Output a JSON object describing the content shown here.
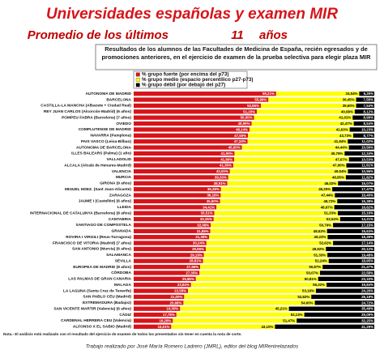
{
  "chart_data": {
    "type": "stacked-bar",
    "title": "Universidades españolas y examen MIR",
    "subtitle": "Promedio de los últimos",
    "subtitle_number": "11",
    "subtitle_unit": "años",
    "description": "Resultados de los alumnos de las Facultades de Medicina de España, recién egresados y de promociones anteriores, en el ejercicio de examen de la prueba selectiva para elegir plaza MIR",
    "note": "Nota.- El análisis está realizado con el resultado del ejercicio de examen de todos los presentados sin tener en cuenta la nota de corte.",
    "footer": "Trabajo realizado por José María Romero Ladrero (JMRL), editor del blog MIRentrelazados",
    "xlim": [
      0,
      100
    ],
    "categories": [
      "AUTONOMA DE MADRID",
      "BARCELONA",
      "CASTILLA-LA MANCHA (Albacete + Ciudad Real)",
      "REY JUAN CARLOS (Alcorcón-Madrid) (6 años)",
      "POMPEU FABRA (Barcelona) (7 años)",
      "OVIEDO",
      "COMPLUTENSE DE MADRID",
      "NAVARRA (Pamplona)",
      "PAIS VASCO (Leioa-Bilbao)",
      "AUTONOMA DE BARCELONA",
      "ILLES BALEARS (Palma) (1 año)",
      "VALLADOLID",
      "ALCALA (Alcalá de Henares-Madrid)",
      "VALENCIA",
      "MURCIA",
      "GIRONA (9 años)",
      "MIGUEL HDEZ. (Sant Joan-Alicante)",
      "ZARAGOZA",
      "JAUME I (Castellón) (6 años)",
      "LLEIDA",
      "INTERNACIONAL DE CATALUNYA (Barcelona) (8 años)",
      "CANTABRIA",
      "SANTIAGO DE COMPOSTELA",
      "GRANADA",
      "ROVIRA I VIRGILI (Reus-Tarragona)",
      "FRANCISCO DE VITORIA (Madrid) (7 años)",
      "SAN ANTONIO (Murcia) (6 años)",
      "SALAMANCA",
      "SEVILLA",
      "EUROPEA DE MADRID (8 años)",
      "CÓRDOBA",
      "LAS PALMAS DE GRAN CANARIA",
      "MALAGA",
      "LA LAGUNA (Santa Cruz de Tenerife)",
      "SAN PABLO CEU (Madrid)",
      "EXTREMADURA (Badajoz)",
      "SAN VICENTE MARTIR (Valencia) (6 años)",
      "CÁDIZ",
      "CARDENAL HERRERA CEU (Valencia)",
      "ALFONSO X EL SABIO (Madrid)"
    ],
    "series": [
      {
        "name": "% grupo fuerte (por encima del p73)",
        "color": "#d7141a",
        "values": [
          59.21,
          55.99,
          52.86,
          51.2,
          50.0,
          48.99,
          48.14,
          47.5,
          47.34,
          45.0,
          41.9,
          41.8,
          41.39,
          40.0,
          39.33,
          38.91,
          36.28,
          36.16,
          35.9,
          34.41,
          33.51,
          33.25,
          32.06,
          31.85,
          31.38,
          30.24,
          29.96,
          29.19,
          28.81,
          27.66,
          27.35,
          25.86,
          23.84,
          22.58,
          21.0,
          20.68,
          19.3,
          17.78,
          16.28,
          15.61
        ],
        "value_labels": [
          "59,21%",
          "55,99%",
          "52,86%",
          "51,20%",
          "50,00%",
          "48,99%",
          "48,14%",
          "47,50%",
          "47,34%",
          "45,00%",
          "41,90%",
          "41,80%",
          "41,39%",
          "40,00%",
          "39,33%",
          "38,91%",
          "36,28%",
          "36,16%",
          "35,90%",
          "34,41%",
          "33,51%",
          "33,25%",
          "32,06%",
          "31,85%",
          "31,38%",
          "30,24%",
          "29,96%",
          "29,19%",
          "28,81%",
          "27,66%",
          "27,35%",
          "25,86%",
          "23,84%",
          "22,58%",
          "21,00%",
          "20,68%",
          "19,30%",
          "17,78%",
          "16,28%",
          "15,61%"
        ]
      },
      {
        "name": "% grupo medio (espacio percentílico p27-p73)",
        "color": "#ffff00",
        "values": [
          34.54,
          36.45,
          39.6,
          40.68,
          41.01,
          42.47,
          41.63,
          43.73,
          41.64,
          44.44,
          45.76,
          47.67,
          47.0,
          49.04,
          48.85,
          46.02,
          46.25,
          47.44,
          48.72,
          48.97,
          51.33,
          52.54,
          50.79,
          48.52,
          49.23,
          52.62,
          49.92,
          51.33,
          52.24,
          50.87,
          50.07,
          50.81,
          56.32,
          53.16,
          52.82,
          54.6,
          45.21,
          53.13,
          51.47,
          43.1
        ],
        "value_labels": [
          "34,54%",
          "36,45%",
          "39,60%",
          "40,68%",
          "41,01%",
          "42,47%",
          "41,63%",
          "43,73%",
          "41,64%",
          "44,44%",
          "45,76%",
          "47,67%",
          "47,00%",
          "49,04%",
          "48,85%",
          "46,02%",
          "46,25%",
          "47,44%",
          "48,72%",
          "48,97%",
          "51,33%",
          "52,54%",
          "50,79%",
          "48,52%",
          "49,23%",
          "52,62%",
          "49,92%",
          "51,33%",
          "52,24%",
          "50,87%",
          "50,07%",
          "50,81%",
          "56,32%",
          "53,16%",
          "52,82%",
          "54,60%",
          "45,21%",
          "53,13%",
          "51,47%",
          "43,10%"
        ]
      },
      {
        "name": "% grupo débil (por debajo del p27)",
        "color": "#000000",
        "values": [
          6.26,
          7.56,
          7.54,
          8.12,
          8.99,
          8.54,
          10.23,
          8.77,
          11.02,
          10.56,
          12.34,
          10.53,
          11.61,
          10.96,
          11.82,
          15.07,
          17.47,
          16.4,
          15.38,
          16.62,
          15.16,
          14.21,
          17.15,
          19.63,
          19.39,
          17.14,
          20.12,
          19.48,
          18.95,
          21.47,
          22.58,
          23.33,
          19.84,
          24.26,
          26.18,
          24.72,
          35.49,
          29.09,
          32.25,
          41.29
        ],
        "value_labels": [
          "6,26%",
          "7,56%",
          "7,54%",
          "8,12%",
          "8,99%",
          "8,54%",
          "10,23%",
          "8,77%",
          "11,02%",
          "10,56%",
          "12,34%",
          "10,53%",
          "11,61%",
          "10,96%",
          "11,82%",
          "15,07%",
          "17,47%",
          "16,40%",
          "15,38%",
          "16,62%",
          "15,16%",
          "14,21%",
          "17,15%",
          "19,63%",
          "19,39%",
          "17,14%",
          "20,12%",
          "19,48%",
          "18,95%",
          "21,47%",
          "22,58%",
          "23,33%",
          "19,84%",
          "24,26%",
          "26,18%",
          "24,72%",
          "35,49%",
          "29,09%",
          "32,25%",
          "41,29%"
        ]
      }
    ]
  }
}
